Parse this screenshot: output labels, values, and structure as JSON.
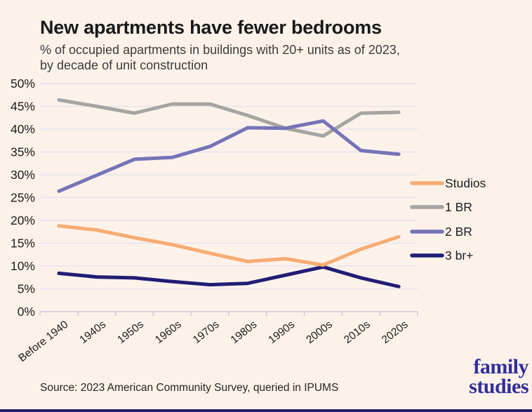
{
  "header": {
    "title": "New apartments have fewer bedrooms",
    "subtitle_line1": "% of occupied apartments in buildings with 20+ units as of 2023,",
    "subtitle_line2": "by decade of unit construction"
  },
  "chart_data": {
    "type": "line",
    "title": "New apartments have fewer bedrooms",
    "subtitle": "% of occupied apartments in buildings with 20+ units as of 2023, by decade of unit construction",
    "categories": [
      "Before 1940",
      "1940s",
      "1950s",
      "1960s",
      "1970s",
      "1980s",
      "1990s",
      "2000s",
      "2010s",
      "2020s"
    ],
    "series": [
      {
        "name": "Studios",
        "color": "#f6ac73",
        "values": [
          18.8,
          17.9,
          16.2,
          14.7,
          12.8,
          11.0,
          11.6,
          10.2,
          13.7,
          16.4
        ]
      },
      {
        "name": "1 BR",
        "color": "#a5a5a1",
        "values": [
          46.4,
          45.0,
          43.5,
          45.5,
          45.5,
          43.0,
          40.2,
          38.5,
          43.5,
          43.7
        ]
      },
      {
        "name": "2 BR",
        "color": "#7673b8",
        "values": [
          26.4,
          29.9,
          33.4,
          33.8,
          36.2,
          40.3,
          40.2,
          41.8,
          35.3,
          34.5
        ]
      },
      {
        "name": "3 br+",
        "color": "#211d75",
        "values": [
          8.4,
          7.6,
          7.4,
          6.6,
          5.9,
          6.2,
          8.0,
          9.8,
          7.4,
          5.5
        ]
      }
    ],
    "xlabel": "",
    "ylabel": "",
    "ylim": [
      0,
      50
    ],
    "ytick_step": 5,
    "ytick_suffix": "%",
    "grid": true,
    "legend_position": "right"
  },
  "footer": {
    "source": "Source: 2023 American Community Survey, queried in IPUMS",
    "logo_line1": "family",
    "logo_line2": "studies"
  },
  "colors": {
    "background": "#fdf2ea",
    "grid": "#e6e3ef",
    "axis": "#cac7d8",
    "text": "#1c1c1c",
    "subtitle_text": "#3b3b3b",
    "logo": "#322e9d",
    "bottom_bar": "#23216e"
  }
}
